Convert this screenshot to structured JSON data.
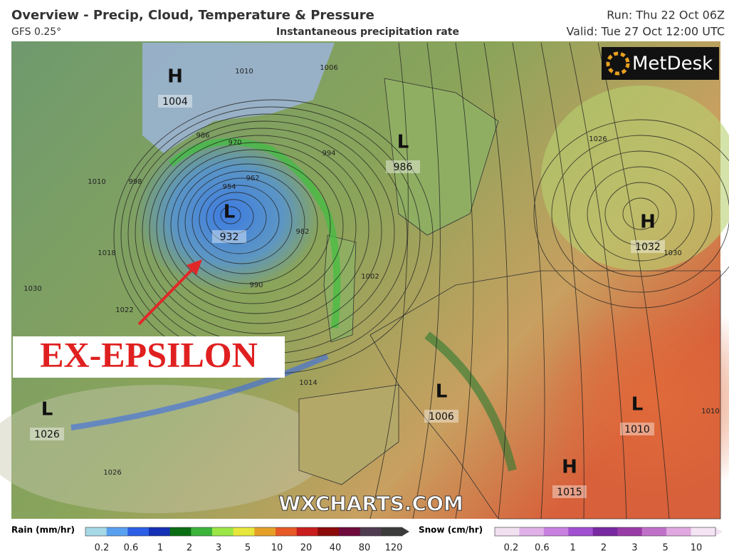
{
  "header": {
    "title": "Overview - Precip, Cloud, Temperature & Pressure",
    "model": "GFS 0.25°",
    "product": "Instantaneous precipitation rate",
    "run": "Run: Thu 22 Oct 06Z",
    "valid": "Valid: Tue 27 Oct 12:00 UTC"
  },
  "logo": "MetDesk",
  "annotation": "EX-EPSILON",
  "watermark": "WXCHARTS.COM",
  "pressure_centers": [
    {
      "label": "H",
      "value": 1004
    },
    {
      "label": "L",
      "value": 986
    },
    {
      "label": "L",
      "value": 932
    },
    {
      "label": "H",
      "value": 1032
    },
    {
      "label": "L",
      "value": 1026
    },
    {
      "label": "L",
      "value": 1006
    },
    {
      "label": "L",
      "value": 1010
    },
    {
      "label": "H",
      "value": 1015
    }
  ],
  "isobar_labels": [
    1010,
    998,
    1018,
    1022,
    1030,
    990,
    982,
    1002,
    1006,
    994,
    1026,
    1030,
    1014,
    1026,
    1010,
    1010,
    986,
    970,
    962,
    954
  ],
  "legend": {
    "rain": {
      "title": "Rain (mm/hr)",
      "ticks": [
        0.2,
        0.6,
        1,
        2,
        3,
        5,
        10,
        20,
        40,
        80,
        120
      ],
      "colors": [
        "#a6d8e6",
        "#5aa0f0",
        "#2d5fe6",
        "#1430b4",
        "#0a6e14",
        "#3cb43c",
        "#9be646",
        "#e6e63c",
        "#e6a028",
        "#e65a28",
        "#c81e1e",
        "#8c0a0a",
        "#6e0a3c",
        "#503c50",
        "#3c3c3c"
      ]
    },
    "snow": {
      "title": "Snow (cm/hr)",
      "ticks": [
        0.2,
        0.6,
        1,
        2,
        3,
        5,
        10
      ],
      "colors": [
        "#f0e0f0",
        "#e0b0e8",
        "#c880e0",
        "#a050d0",
        "#7828a0",
        "#9a3ca8",
        "#c070c8",
        "#e0a8e0",
        "#f4e4f4"
      ]
    }
  }
}
